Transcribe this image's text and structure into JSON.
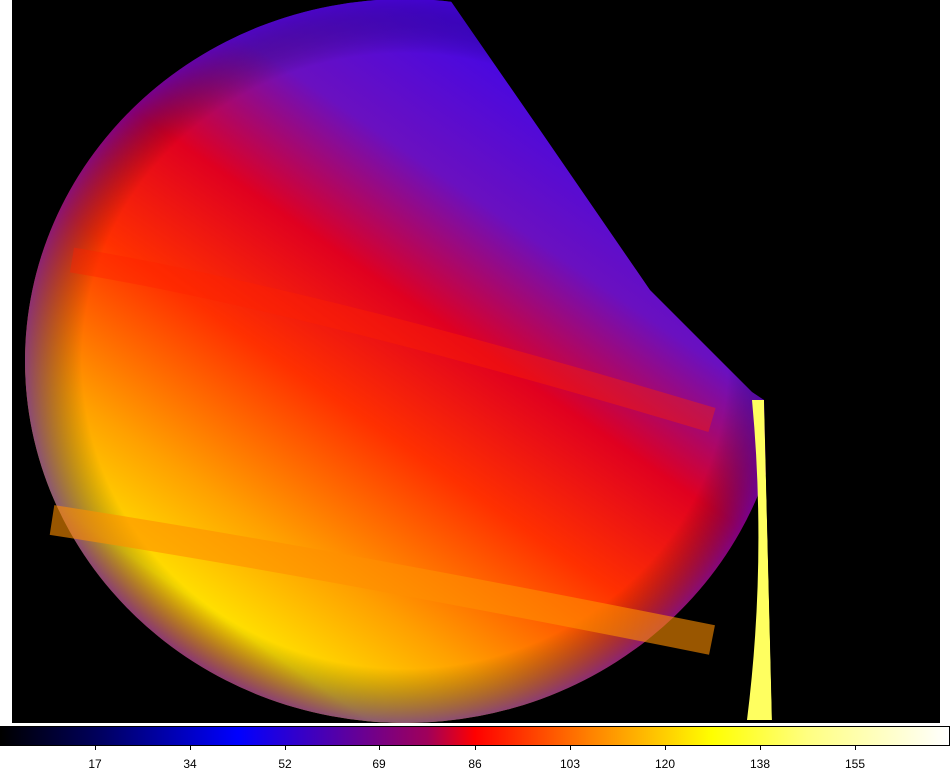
{
  "image": {
    "subject": "planet false-color image",
    "colormap": [
      "#000000",
      "#0000ff",
      "#ff0000",
      "#ffff00",
      "#ffffff"
    ]
  },
  "colorbar": {
    "ticks": [
      "17",
      "34",
      "52",
      "69",
      "86",
      "103",
      "120",
      "138",
      "155"
    ]
  }
}
